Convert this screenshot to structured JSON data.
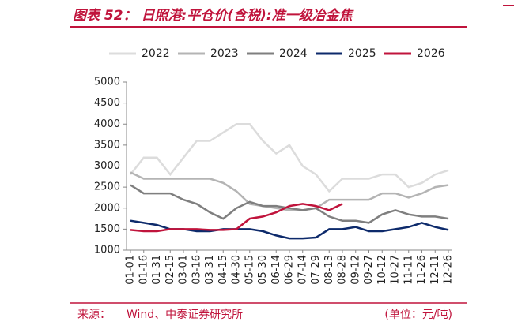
{
  "chart_data": {
    "type": "line",
    "title": "图表 52： 日照港:平仓价(含税):准一级冶金焦",
    "source_label": "来源：",
    "source": "Wind、中泰证券研究所",
    "unit": "(单位：元/吨)",
    "categories": [
      "01-01",
      "01-16",
      "01-31",
      "02-15",
      "03-01",
      "03-16",
      "03-31",
      "04-15",
      "04-30",
      "05-15",
      "05-30",
      "06-14",
      "06-29",
      "07-14",
      "07-29",
      "08-13",
      "08-28",
      "09-12",
      "09-27",
      "10-12",
      "10-27",
      "11-11",
      "11-26",
      "12-11",
      "12-26"
    ],
    "series": [
      {
        "name": "2022",
        "color": "#dcdcdc",
        "values": [
          2800,
          3200,
          3200,
          2800,
          3200,
          3600,
          3600,
          3800,
          4000,
          4000,
          3600,
          3300,
          3500,
          3000,
          2800,
          2400,
          2700,
          2700,
          2700,
          2800,
          2800,
          2500,
          2600,
          2800,
          2900
        ]
      },
      {
        "name": "2023",
        "color": "#b4b4b4",
        "values": [
          2850,
          2700,
          2700,
          2700,
          2700,
          2700,
          2700,
          2600,
          2400,
          2100,
          2050,
          2000,
          1950,
          1950,
          2000,
          2200,
          2200,
          2200,
          2200,
          2350,
          2350,
          2250,
          2350,
          2500,
          2550
        ]
      },
      {
        "name": "2024",
        "color": "#7f7f7f",
        "values": [
          2550,
          2350,
          2350,
          2350,
          2200,
          2100,
          1900,
          1750,
          2000,
          2150,
          2050,
          2050,
          2000,
          1950,
          2000,
          1800,
          1700,
          1700,
          1650,
          1850,
          1950,
          1850,
          1800,
          1800,
          1750
        ]
      },
      {
        "name": "2025",
        "color": "#0d2a6b",
        "values": [
          1700,
          1650,
          1600,
          1500,
          1500,
          1450,
          1450,
          1500,
          1500,
          1500,
          1450,
          1350,
          1280,
          1280,
          1300,
          1500,
          1500,
          1550,
          1450,
          1450,
          1500,
          1550,
          1650,
          1550,
          1480
        ]
      },
      {
        "name": "2026",
        "color": "#c0143c",
        "values": [
          1480,
          1450,
          1450,
          1500,
          1500,
          1500,
          1480,
          1480,
          1500,
          1750,
          1800,
          1900,
          2050,
          2100,
          2050,
          1950,
          2100,
          null,
          null,
          null,
          null,
          null,
          null,
          null,
          null
        ]
      }
    ],
    "ylim": [
      1000,
      5000
    ],
    "yticks": [
      1000,
      1500,
      2000,
      2500,
      3000,
      3500,
      4000,
      4500,
      5000
    ]
  }
}
